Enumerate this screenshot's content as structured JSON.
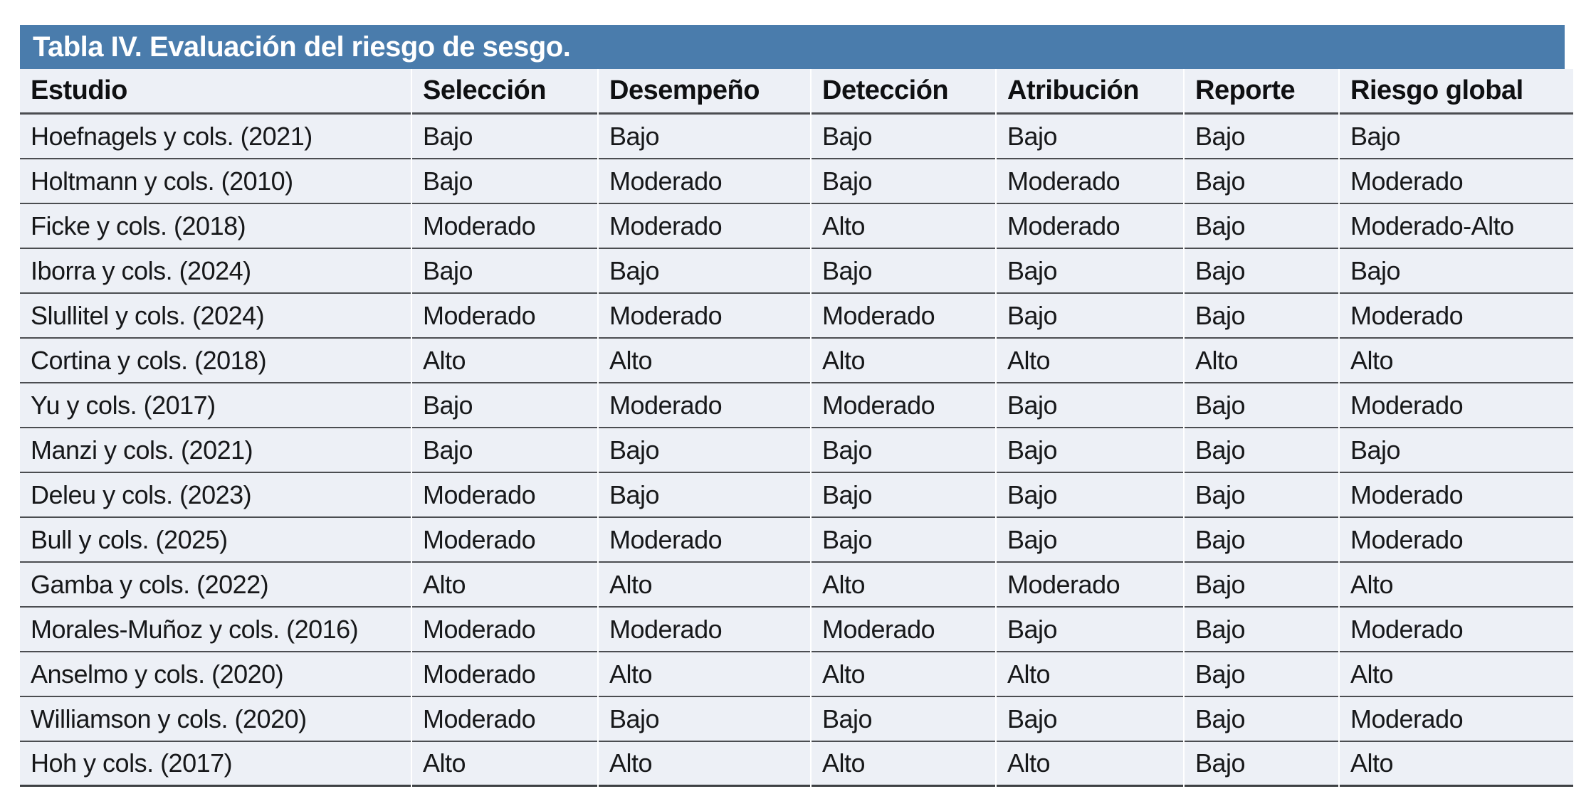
{
  "table": {
    "title": "Tabla IV. Evaluación del riesgo de sesgo.",
    "columns": [
      "Estudio",
      "Selección",
      "Desempeño",
      "Detección",
      "Atribución",
      "Reporte",
      "Riesgo global"
    ],
    "rows": [
      {
        "study": "Hoefnagels y cols. (2021)",
        "values": [
          "Bajo",
          "Bajo",
          "Bajo",
          "Bajo",
          "Bajo",
          "Bajo"
        ]
      },
      {
        "study": "Holtmann y cols. (2010)",
        "values": [
          "Bajo",
          "Moderado",
          "Bajo",
          "Moderado",
          "Bajo",
          "Moderado"
        ]
      },
      {
        "study": "Ficke y cols. (2018)",
        "values": [
          "Moderado",
          "Moderado",
          "Alto",
          "Moderado",
          "Bajo",
          "Moderado-Alto"
        ]
      },
      {
        "study": "Iborra y cols. (2024)",
        "values": [
          "Bajo",
          "Bajo",
          "Bajo",
          "Bajo",
          "Bajo",
          "Bajo"
        ]
      },
      {
        "study": "Slullitel y cols. (2024)",
        "values": [
          "Moderado",
          "Moderado",
          "Moderado",
          "Bajo",
          "Bajo",
          "Moderado"
        ]
      },
      {
        "study": "Cortina y cols. (2018)",
        "values": [
          "Alto",
          "Alto",
          "Alto",
          "Alto",
          "Alto",
          "Alto"
        ]
      },
      {
        "study": "Yu y cols. (2017)",
        "values": [
          "Bajo",
          "Moderado",
          "Moderado",
          "Bajo",
          "Bajo",
          "Moderado"
        ]
      },
      {
        "study": "Manzi y cols. (2021)",
        "values": [
          "Bajo",
          "Bajo",
          "Bajo",
          "Bajo",
          "Bajo",
          "Bajo"
        ]
      },
      {
        "study": "Deleu y cols. (2023)",
        "values": [
          "Moderado",
          "Bajo",
          "Bajo",
          "Bajo",
          "Bajo",
          "Moderado"
        ]
      },
      {
        "study": "Bull y cols. (2025)",
        "values": [
          "Moderado",
          "Moderado",
          "Bajo",
          "Bajo",
          "Bajo",
          "Moderado"
        ]
      },
      {
        "study": "Gamba y cols. (2022)",
        "values": [
          "Alto",
          "Alto",
          "Alto",
          "Moderado",
          "Bajo",
          "Alto"
        ]
      },
      {
        "study": "Morales-Muñoz y cols. (2016)",
        "values": [
          "Moderado",
          "Moderado",
          "Moderado",
          "Bajo",
          "Bajo",
          "Moderado"
        ]
      },
      {
        "study": "Anselmo y cols. (2020)",
        "values": [
          "Moderado",
          "Alto",
          "Alto",
          "Alto",
          "Bajo",
          "Alto"
        ]
      },
      {
        "study": "Williamson y cols. (2020)",
        "values": [
          "Moderado",
          "Bajo",
          "Bajo",
          "Bajo",
          "Bajo",
          "Moderado"
        ]
      },
      {
        "study": "Hoh y cols. (2017)",
        "values": [
          "Alto",
          "Alto",
          "Alto",
          "Alto",
          "Bajo",
          "Alto"
        ]
      }
    ]
  },
  "colors": {
    "title_bar": "#4A7CAC",
    "row_background": "#EDF0F6",
    "separator": "#4B4D51",
    "title_text": "#FFFFFF",
    "body_text": "#17181A"
  }
}
